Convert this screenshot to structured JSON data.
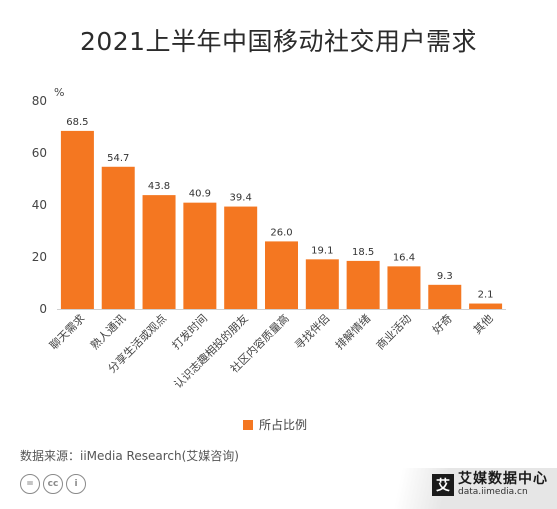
{
  "chart_data": {
    "type": "bar",
    "title": "2021上半年中国移动社交用户需求",
    "ylabel": "%",
    "ylim": [
      0,
      80
    ],
    "yticks": [
      0,
      20,
      40,
      60,
      80
    ],
    "grid": false,
    "legend_position": "bottom",
    "categories": [
      "聊天需求",
      "熟人通讯",
      "分享生活或观点",
      "打发时间",
      "认识志趣相投的朋友",
      "社区内容质量高",
      "寻找伴侣",
      "排解情绪",
      "商业活动",
      "好奇",
      "其他"
    ],
    "series": [
      {
        "name": "所占比例",
        "values": [
          68.5,
          54.7,
          43.8,
          40.9,
          39.4,
          26.0,
          19.1,
          18.5,
          16.4,
          9.3,
          2.1
        ],
        "value_labels": [
          "68.5",
          "54.7",
          "43.8",
          "40.9",
          "39.4",
          "26.0",
          "19.1",
          "18.5",
          "16.4",
          "9.3",
          "2.1"
        ]
      }
    ],
    "bar_color": "#F47721"
  },
  "footer": {
    "source": "数据来源：iiMedia Research(艾媒咨询)",
    "cc_badges": [
      "=",
      "cc",
      "i"
    ]
  },
  "logo": {
    "mark": "艾",
    "name": "艾媒数据中心",
    "url": "data.iimedia.cn"
  }
}
